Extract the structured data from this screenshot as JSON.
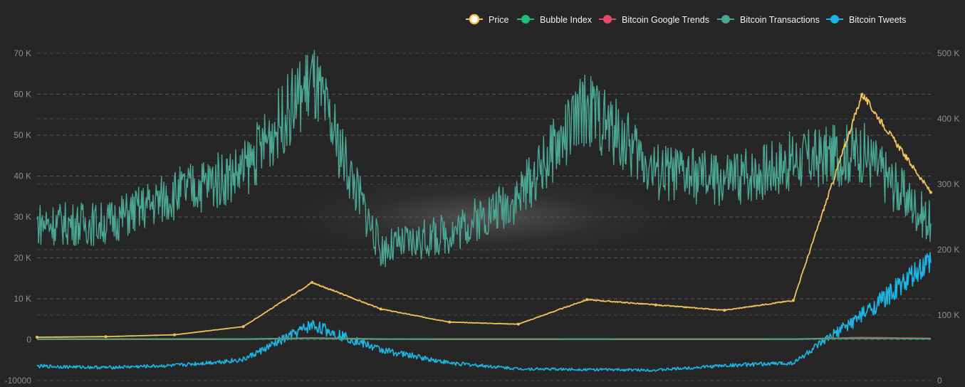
{
  "chart_data": {
    "type": "line",
    "title": "",
    "xlabel": "",
    "ylabel": "",
    "grid": true,
    "legend_position": "top-right",
    "left_axis": {
      "range": [
        -10000,
        70000
      ],
      "ticks": [
        -10000,
        0,
        10000,
        20000,
        30000,
        40000,
        50000,
        60000,
        70000
      ],
      "tick_labels": [
        "-10000",
        "0",
        "10 K",
        "20 K",
        "30 K",
        "40 K",
        "50 K",
        "60 K",
        "70 K"
      ]
    },
    "right_axis": {
      "range": [
        0,
        500
      ],
      "ticks": [
        0,
        100,
        200,
        300,
        400,
        500
      ],
      "tick_labels": [
        "0",
        "100 K",
        "200 K",
        "300 K",
        "400 K",
        "500 K"
      ]
    },
    "x_count": 14,
    "series": [
      {
        "name": "Price",
        "axis": "left",
        "color": "#f2c25a",
        "values": [
          600,
          750,
          1200,
          3200,
          14000,
          7500,
          4300,
          3800,
          9800,
          8500,
          7200,
          9600,
          60000,
          36000
        ]
      },
      {
        "name": "Bubble Index",
        "axis": "left",
        "color": "#1fbf7a",
        "values": [
          200,
          200,
          200,
          200,
          300,
          200,
          200,
          200,
          200,
          200,
          200,
          200,
          300,
          200
        ]
      },
      {
        "name": "Bitcoin Google Trends",
        "axis": "left",
        "color": "#e64a6a",
        "values": [
          100,
          100,
          100,
          120,
          400,
          150,
          100,
          100,
          120,
          100,
          100,
          120,
          500,
          300
        ]
      },
      {
        "name": "Bitcoin Transactions",
        "axis": "right",
        "color": "#4aa891",
        "values": [
          240,
          240,
          285,
          320,
          460,
          200,
          225,
          280,
          420,
          320,
          305,
          335,
          350,
          240
        ]
      },
      {
        "name": "Bitcoin Tweets",
        "axis": "right",
        "color": "#19b6e6",
        "values": [
          22,
          20,
          23,
          32,
          85,
          47,
          27,
          18,
          17,
          16,
          23,
          27,
          100,
          180
        ]
      }
    ]
  }
}
